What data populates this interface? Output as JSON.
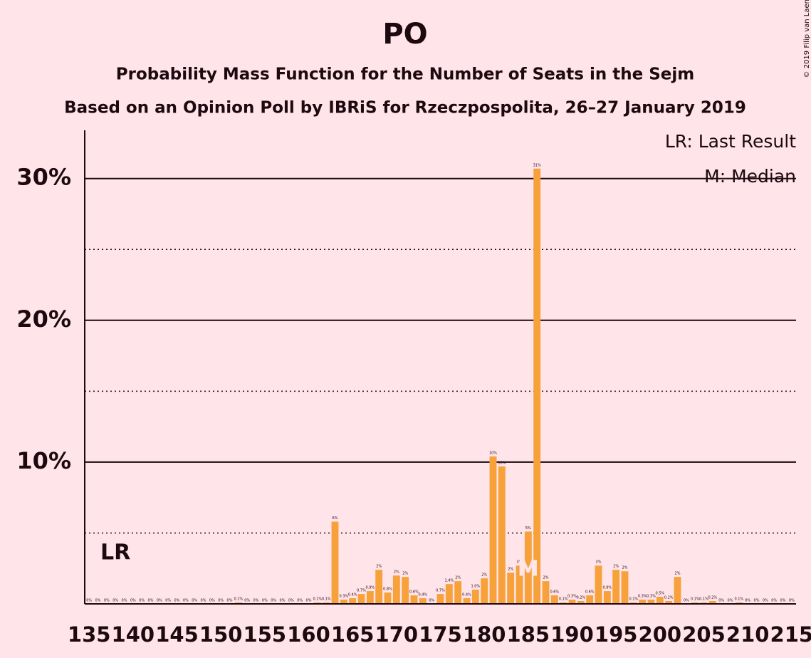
{
  "chart_data": {
    "type": "bar",
    "title": "PO",
    "subtitle": "Probability Mass Function for the Number of Seats in the Sejm",
    "subtitle2": "Based on an Opinion Poll by IBRiS for Rzeczpospolita, 26–27 January 2019",
    "copyright": "© 2019 Filip van Laenen",
    "legend": [
      "LR: Last Result",
      "M: Median"
    ],
    "last_result_label": "LR",
    "last_result": 138,
    "median_label": "M",
    "median": 185,
    "color": "#f7a13b",
    "x": [
      135,
      136,
      137,
      138,
      139,
      140,
      141,
      142,
      143,
      144,
      145,
      146,
      147,
      148,
      149,
      150,
      151,
      152,
      153,
      154,
      155,
      156,
      157,
      158,
      159,
      160,
      161,
      162,
      163,
      164,
      165,
      166,
      167,
      168,
      169,
      170,
      171,
      172,
      173,
      174,
      175,
      176,
      177,
      178,
      179,
      180,
      181,
      182,
      183,
      184,
      185,
      186,
      187,
      188,
      189,
      190,
      191,
      192,
      193,
      194,
      195,
      196,
      197,
      198,
      199,
      200,
      201,
      202,
      203,
      204,
      205,
      206,
      207,
      208,
      209,
      210,
      211,
      212,
      213,
      214,
      215
    ],
    "values": [
      0,
      0,
      0,
      0,
      0,
      0,
      0,
      0,
      0,
      0,
      0,
      0,
      0,
      0,
      0,
      0,
      0,
      0.1,
      0,
      0,
      0,
      0,
      0,
      0,
      0,
      0,
      0.1,
      0.1,
      5.8,
      0.3,
      0.4,
      0.7,
      0.9,
      2.4,
      0.8,
      2.0,
      1.9,
      0.6,
      0.4,
      0,
      0.7,
      1.4,
      1.6,
      0.4,
      1.0,
      1.8,
      10.4,
      9.7,
      2.2,
      2.7,
      5.1,
      30.7,
      1.6,
      0.6,
      0.1,
      0.3,
      0.2,
      0.6,
      2.7,
      0.9,
      2.4,
      2.3,
      0.1,
      0.3,
      0.3,
      0.5,
      0.2,
      1.9,
      0,
      0.1,
      0.1,
      0.2,
      0,
      0,
      0.1,
      0,
      0,
      0,
      0,
      0,
      0
    ],
    "value_labels": [
      "0%",
      "0%",
      "0%",
      "0%",
      "0%",
      "0%",
      "0%",
      "0%",
      "0%",
      "0%",
      "0%",
      "0%",
      "0%",
      "0%",
      "0%",
      "0%",
      "0%",
      "0.1%",
      "0%",
      "0%",
      "0%",
      "0%",
      "0%",
      "0%",
      "0%",
      "0%",
      "0.1%",
      "0.1%",
      "6%",
      "0.3%",
      "0.4%",
      "0.7%",
      "0.9%",
      "2%",
      "0.8%",
      "2%",
      "2%",
      "0.6%",
      "0.4%",
      "0%",
      "0.7%",
      "1.4%",
      "2%",
      "0.4%",
      "1.0%",
      "2%",
      "10%",
      "10%",
      "2%",
      "3%",
      "5%",
      "31%",
      "2%",
      "0.6%",
      "0.1%",
      "0.3%",
      "0.2%",
      "0.6%",
      "3%",
      "0.9%",
      "2%",
      "2%",
      "0.1%",
      "0.3%",
      "0.3%",
      "0.5%",
      "0.2%",
      "2%",
      "0%",
      "0.1%",
      "0.1%",
      "0.2%",
      "0%",
      "0%",
      "0.1%",
      "0%",
      "0%",
      "0%",
      "0%",
      "0%",
      "0%"
    ],
    "xlim": [
      134.5,
      215.5
    ],
    "xticks": [
      135,
      140,
      145,
      150,
      155,
      160,
      165,
      170,
      175,
      180,
      185,
      190,
      195,
      200,
      205,
      210,
      215
    ],
    "ylim": [
      0,
      33.4
    ],
    "yticks": [
      {
        "value": 10,
        "label": "10%"
      },
      {
        "value": 20,
        "label": "20%"
      },
      {
        "value": 30,
        "label": "30%"
      }
    ],
    "minor_yticks": [
      5,
      15,
      25
    ],
    "grid": true
  }
}
